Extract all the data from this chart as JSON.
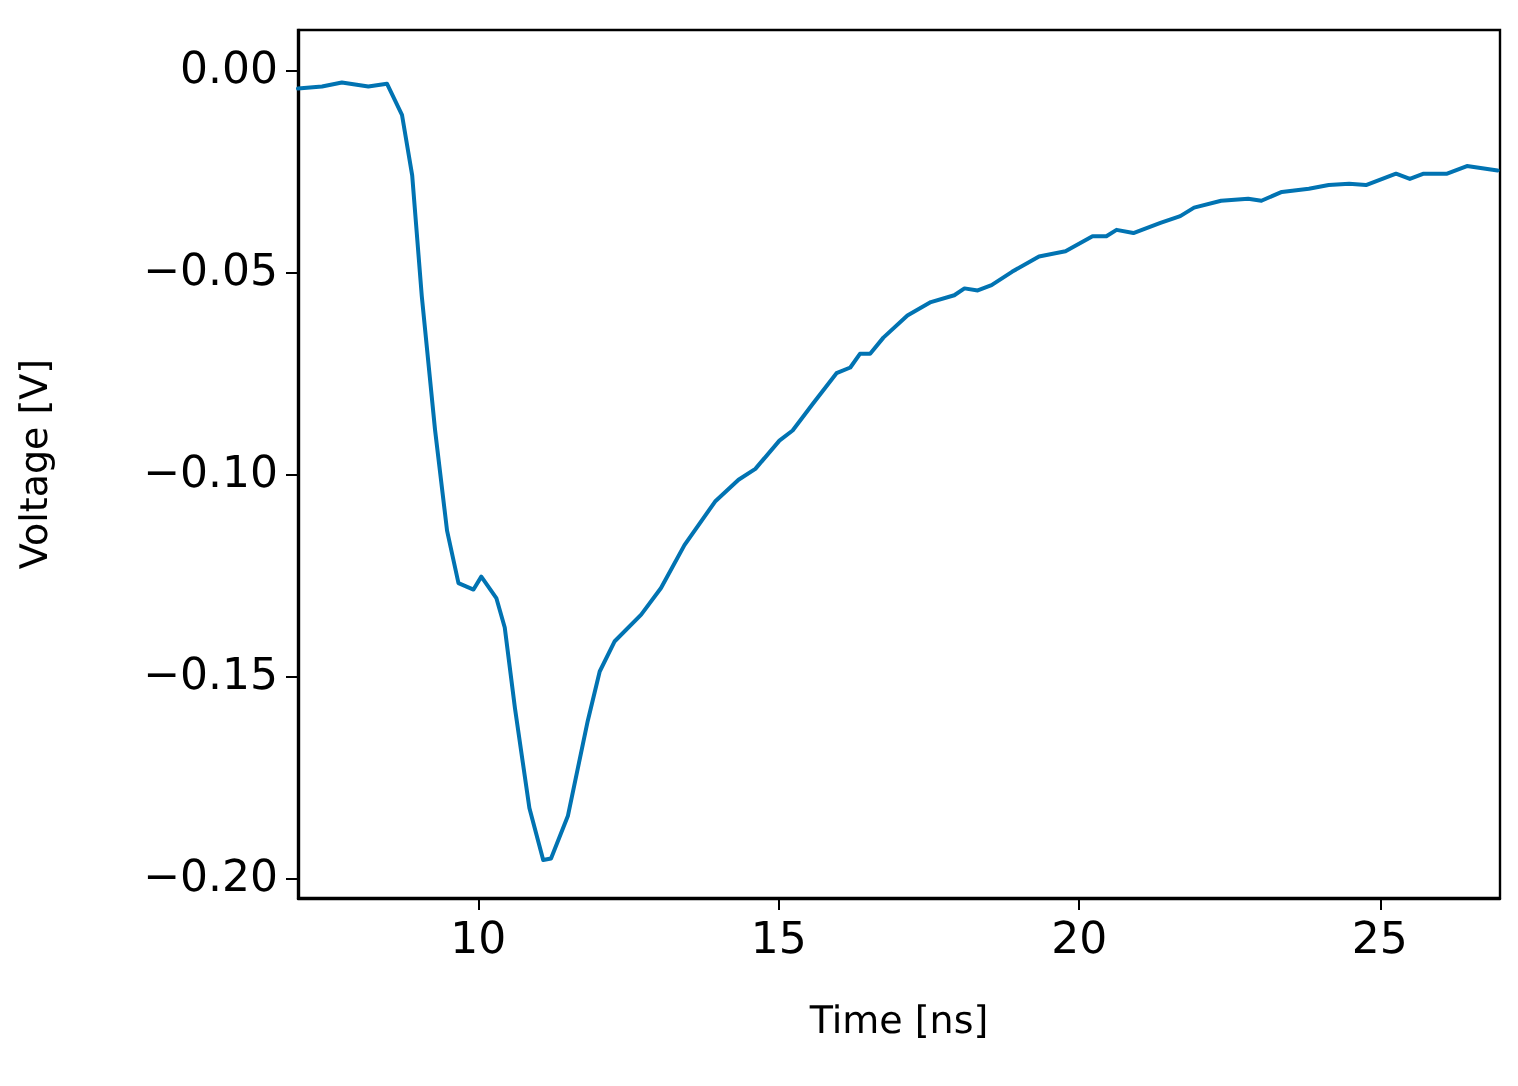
{
  "chart_data": {
    "type": "line",
    "xlabel": "Time [ns]",
    "ylabel": "Voltage [V]",
    "xlim": [
      7,
      27
    ],
    "xticks": [
      10,
      15,
      20,
      25
    ],
    "ylim": [
      -0.205,
      0.01
    ],
    "yticks": [
      {
        "value": 0,
        "label": "0.00"
      },
      {
        "value": -0.05,
        "label": "−0.05"
      },
      {
        "value": -0.1,
        "label": "−0.10"
      },
      {
        "value": -0.15,
        "label": "−0.15"
      },
      {
        "value": -0.2,
        "label": "−0.20"
      }
    ],
    "grid": false,
    "marker": "none",
    "line_style": "solid",
    "series": [
      {
        "color": "#0173b2",
        "x": [
          7.0,
          7.4,
          7.73,
          8.17,
          8.48,
          8.73,
          8.9,
          9.06,
          9.28,
          9.48,
          9.67,
          9.92,
          10.05,
          10.3,
          10.44,
          10.61,
          10.85,
          11.08,
          11.21,
          11.49,
          11.82,
          12.02,
          12.27,
          12.71,
          13.04,
          13.43,
          13.94,
          14.33,
          14.61,
          15.01,
          15.23,
          15.57,
          15.96,
          16.19,
          16.35,
          16.52,
          16.74,
          17.14,
          17.53,
          17.92,
          18.09,
          18.31,
          18.54,
          18.88,
          19.33,
          19.77,
          20.22,
          20.45,
          20.62,
          20.9,
          21.35,
          21.68,
          21.91,
          22.36,
          22.81,
          23.03,
          23.37,
          23.82,
          24.15,
          24.49,
          24.77,
          25.27,
          25.5,
          25.73,
          26.12,
          26.45,
          26.96
        ],
        "values": [
          -0.0045,
          -0.004,
          -0.003,
          -0.004,
          -0.0033,
          -0.011,
          -0.026,
          -0.056,
          -0.089,
          -0.114,
          -0.127,
          -0.1286,
          -0.1254,
          -0.1307,
          -0.138,
          -0.158,
          -0.1827,
          -0.1956,
          -0.1952,
          -0.1847,
          -0.1612,
          -0.1489,
          -0.1414,
          -0.1348,
          -0.1282,
          -0.1176,
          -0.1068,
          -0.1014,
          -0.0987,
          -0.0917,
          -0.0892,
          -0.0825,
          -0.075,
          -0.0736,
          -0.0702,
          -0.0702,
          -0.0662,
          -0.0607,
          -0.0574,
          -0.0557,
          -0.054,
          -0.0545,
          -0.0532,
          -0.0499,
          -0.0461,
          -0.0448,
          -0.0411,
          -0.0411,
          -0.0395,
          -0.0403,
          -0.0378,
          -0.0361,
          -0.034,
          -0.0323,
          -0.0318,
          -0.0323,
          -0.0301,
          -0.0293,
          -0.0284,
          -0.0281,
          -0.0284,
          -0.0256,
          -0.0269,
          -0.0256,
          -0.0256,
          -0.0237,
          -0.0248
        ]
      }
    ]
  }
}
